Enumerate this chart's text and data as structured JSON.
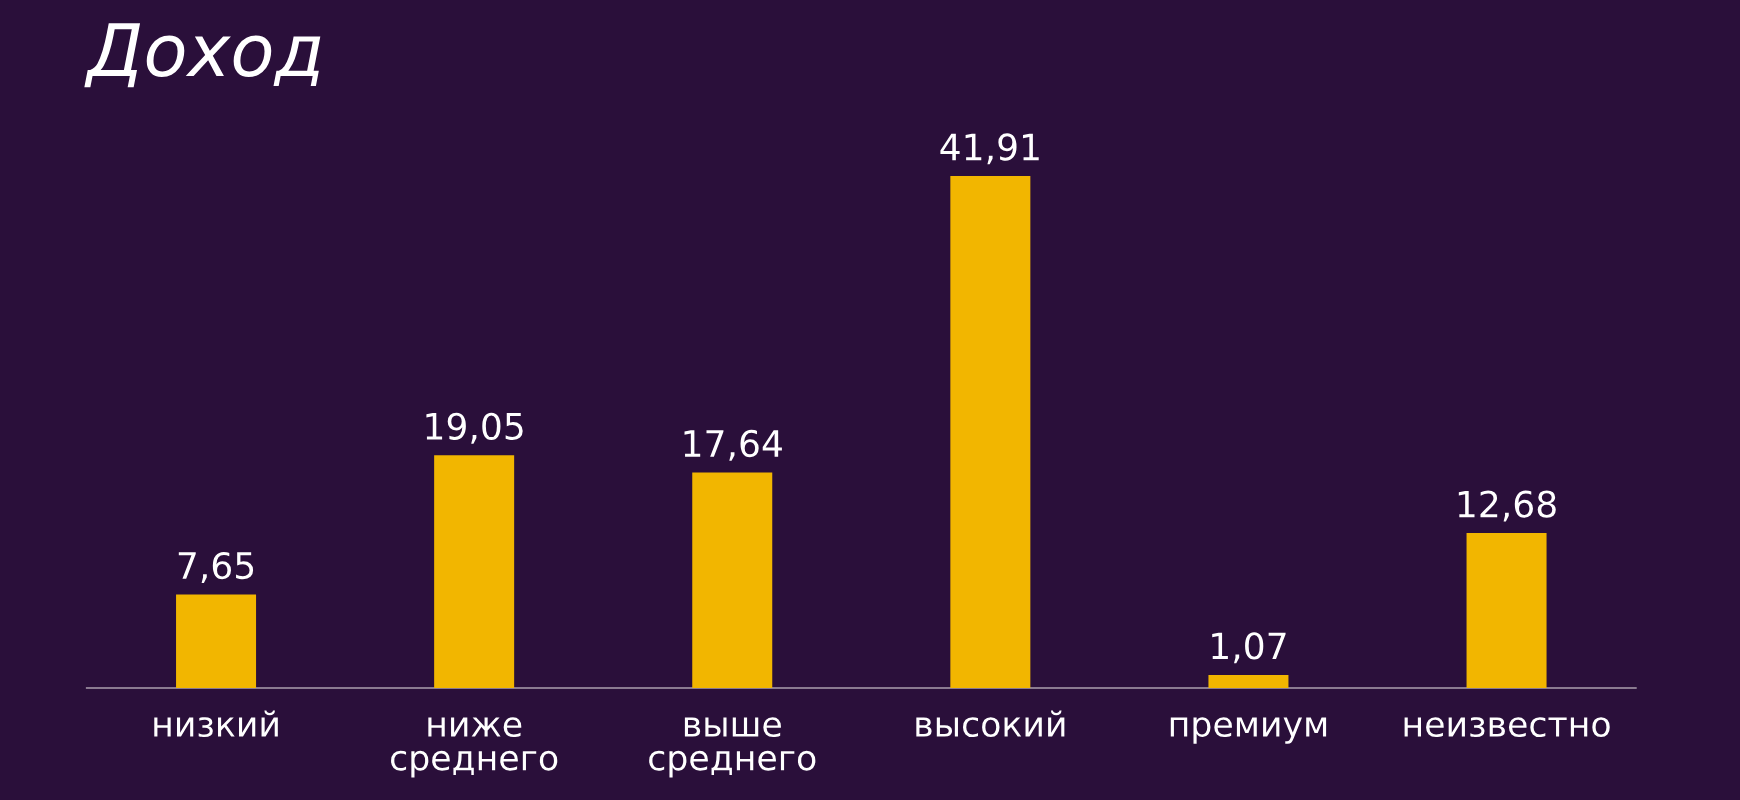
{
  "chart_data": {
    "type": "bar",
    "title": "Доход",
    "categories": [
      "низкий",
      "ниже\nсреднего",
      "выше\nсреднего",
      "высокий",
      "премиум",
      "неизвестно"
    ],
    "values": [
      7.65,
      19.05,
      17.64,
      41.91,
      1.07,
      12.68
    ],
    "value_labels": [
      "7,65",
      "19,05",
      "17,64",
      "41,91",
      "1,07",
      "12,68"
    ],
    "color": "#f2b600",
    "grid": false,
    "legend": false
  }
}
